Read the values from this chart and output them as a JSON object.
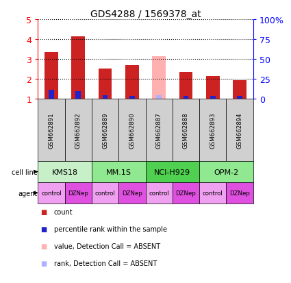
{
  "title": "GDS4288 / 1569378_at",
  "samples": [
    "GSM662891",
    "GSM662892",
    "GSM662889",
    "GSM662890",
    "GSM662887",
    "GSM662888",
    "GSM662893",
    "GSM662894"
  ],
  "count_values": [
    3.35,
    4.15,
    2.5,
    2.7,
    null,
    2.35,
    2.15,
    1.93
  ],
  "rank_values": [
    1.43,
    1.38,
    1.18,
    1.15,
    null,
    1.15,
    1.13,
    1.12
  ],
  "absent_count": [
    null,
    null,
    null,
    null,
    3.15,
    null,
    null,
    null
  ],
  "absent_rank": [
    null,
    null,
    null,
    null,
    1.18,
    null,
    null,
    null
  ],
  "cell_lines": [
    {
      "label": "KMS18",
      "span": [
        0,
        2
      ],
      "color": "#c8f0c8"
    },
    {
      "label": "MM.1S",
      "span": [
        2,
        4
      ],
      "color": "#90e890"
    },
    {
      "label": "NCI-H929",
      "span": [
        4,
        6
      ],
      "color": "#50d050"
    },
    {
      "label": "OPM-2",
      "span": [
        6,
        8
      ],
      "color": "#90e890"
    }
  ],
  "agents": [
    "control",
    "DZNep",
    "control",
    "DZNep",
    "control",
    "DZNep",
    "control",
    "DZNep"
  ],
  "agent_colors": [
    "#f0a0f0",
    "#e050e0",
    "#f0a0f0",
    "#e050e0",
    "#f0a0f0",
    "#e050e0",
    "#f0a0f0",
    "#e050e0"
  ],
  "ylim": [
    1,
    5
  ],
  "yticks": [
    1,
    2,
    3,
    4,
    5
  ],
  "ytick_labels": [
    "1",
    "2",
    "3",
    "4",
    "5"
  ],
  "y2tick_labels": [
    "0",
    "25",
    "50",
    "75",
    "100%"
  ],
  "bar_width": 0.5,
  "rank_bar_width": 0.2,
  "count_color": "#cc2222",
  "rank_color": "#2222cc",
  "absent_count_color": "#ffb0b0",
  "absent_rank_color": "#b0b0ff",
  "left_axis_color": "red",
  "right_axis_color": "blue",
  "sample_box_color": "#d0d0d0",
  "legend_items": [
    {
      "color": "#cc2222",
      "label": "count"
    },
    {
      "color": "#2222cc",
      "label": "percentile rank within the sample"
    },
    {
      "color": "#ffb0b0",
      "label": "value, Detection Call = ABSENT"
    },
    {
      "color": "#b0b0ff",
      "label": "rank, Detection Call = ABSENT"
    }
  ]
}
